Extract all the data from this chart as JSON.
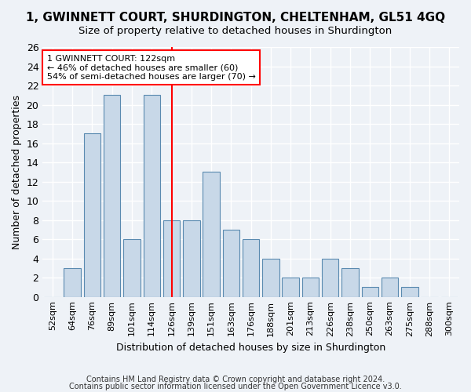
{
  "title": "1, GWINNETT COURT, SHURDINGTON, CHELTENHAM, GL51 4GQ",
  "subtitle": "Size of property relative to detached houses in Shurdington",
  "xlabel": "Distribution of detached houses by size in Shurdington",
  "ylabel": "Number of detached properties",
  "footnote1": "Contains HM Land Registry data © Crown copyright and database right 2024.",
  "footnote2": "Contains public sector information licensed under the Open Government Licence v3.0.",
  "bin_labels": [
    "52sqm",
    "64sqm",
    "76sqm",
    "89sqm",
    "101sqm",
    "114sqm",
    "126sqm",
    "139sqm",
    "151sqm",
    "163sqm",
    "176sqm",
    "188sqm",
    "201sqm",
    "213sqm",
    "226sqm",
    "238sqm",
    "250sqm",
    "263sqm",
    "275sqm",
    "288sqm",
    "300sqm"
  ],
  "bar_heights": [
    0,
    3,
    17,
    21,
    6,
    21,
    8,
    8,
    13,
    7,
    6,
    4,
    2,
    2,
    4,
    3,
    1,
    2,
    1,
    0,
    0
  ],
  "bar_color": "#c8d8e8",
  "bar_edge_color": "#5a8ab0",
  "red_line_index": 6,
  "red_line_label": "1 GWINNETT COURT: 122sqm",
  "annotation_line1": "← 46% of detached houses are smaller (60)",
  "annotation_line2": "54% of semi-detached houses are larger (70) →",
  "annotation_box_color": "white",
  "annotation_box_edge": "red",
  "ylim": [
    0,
    26
  ],
  "ytick_step": 2,
  "background_color": "#eef2f7",
  "grid_color": "white"
}
